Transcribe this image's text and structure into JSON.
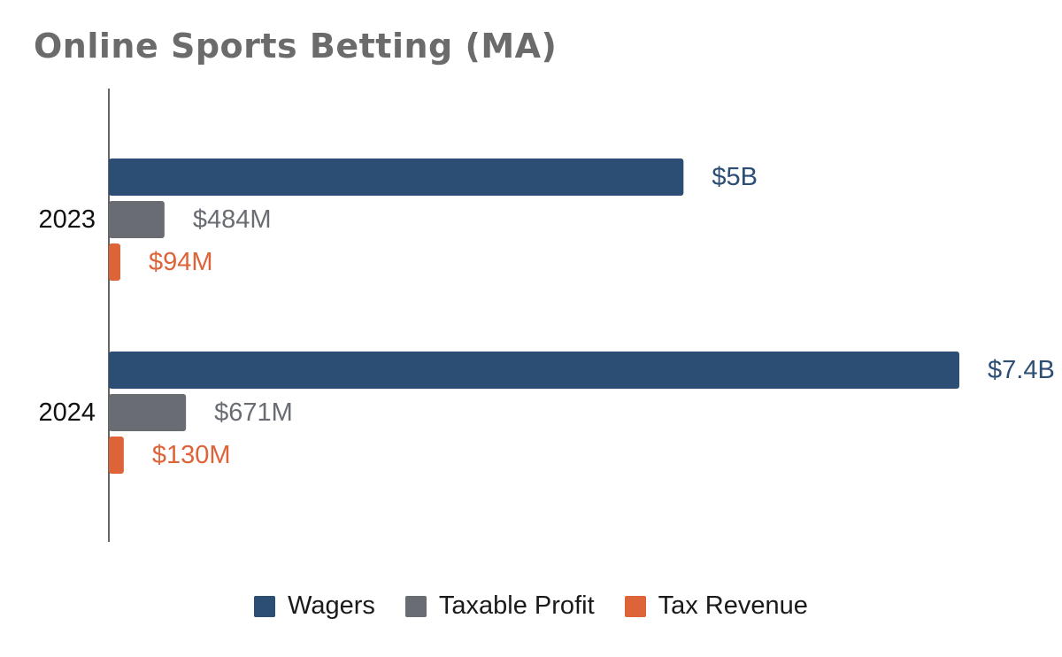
{
  "chart_data": {
    "type": "bar",
    "orientation": "horizontal",
    "title": "Online Sports Betting (MA)",
    "categories": [
      "2023",
      "2024"
    ],
    "series": [
      {
        "name": "Wagers",
        "values": [
          5000,
          7400
        ],
        "labels": [
          "$5B",
          "$7.4B"
        ],
        "color": "#2c4d74"
      },
      {
        "name": "Taxable Profit",
        "values": [
          484,
          671
        ],
        "labels": [
          "$484M",
          "$671M"
        ],
        "color": "#696d73"
      },
      {
        "name": "Tax Revenue",
        "values": [
          94,
          130
        ],
        "labels": [
          "$94M",
          "$130M"
        ],
        "color": "#dd6438"
      }
    ],
    "units": "$M",
    "xlim": [
      0,
      7400
    ],
    "grid": false,
    "legend": "bottom"
  }
}
